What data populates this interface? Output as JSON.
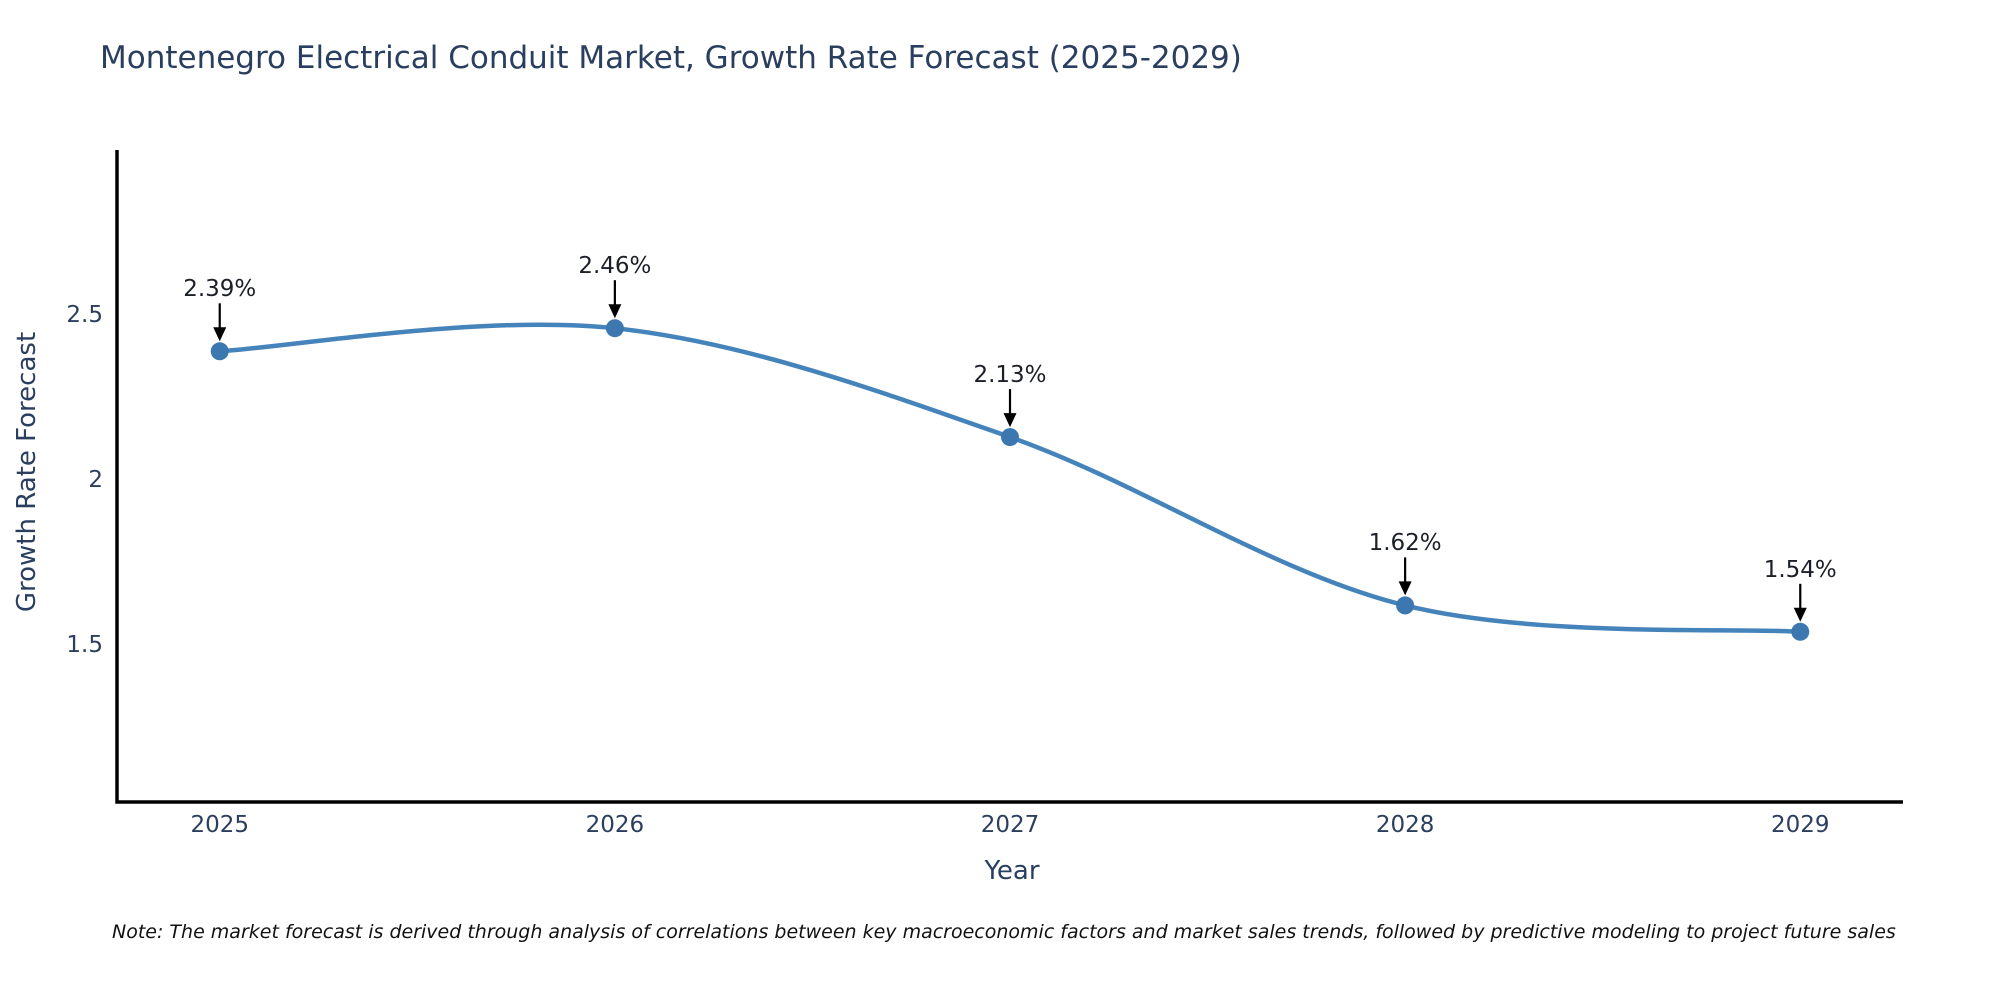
{
  "title": "Montenegro Electrical Conduit Market, Growth Rate Forecast (2025-2029)",
  "note": "Note: The market forecast is derived through analysis of correlations between key macroeconomic factors and market sales trends, followed by predictive modeling to project future sales",
  "chart_data": {
    "type": "line",
    "title": "Montenegro Electrical Conduit Market, Growth Rate Forecast (2025-2029)",
    "xlabel": "Year",
    "ylabel": "Growth Rate Forecast",
    "x": [
      2025,
      2026,
      2027,
      2028,
      2029
    ],
    "values": [
      2.39,
      2.46,
      2.13,
      1.62,
      1.54
    ],
    "point_labels": [
      "2.39%",
      "2.46%",
      "2.13%",
      "1.62%",
      "1.54%"
    ],
    "x_ticks": [
      {
        "value": 2025,
        "label": "2025"
      },
      {
        "value": 2026,
        "label": "2026"
      },
      {
        "value": 2027,
        "label": "2027"
      },
      {
        "value": 2028,
        "label": "2028"
      },
      {
        "value": 2029,
        "label": "2029"
      }
    ],
    "y_ticks": [
      {
        "value": 2.5,
        "label": "2.5"
      },
      {
        "value": 2.0,
        "label": "2"
      },
      {
        "value": 1.5,
        "label": "1.5"
      }
    ],
    "ylim": [
      1.0,
      3.0
    ],
    "xlim": [
      2024.74,
      2029.26
    ],
    "line_shape": "spline",
    "grid": "off",
    "legend": "none",
    "colors": {
      "line": "#4583bb",
      "marker": "#3d77b0",
      "arrow": "#000000",
      "axis": "#000000",
      "title_text": "#2a3f5f",
      "tick_text": "#2c3e5d",
      "annotation_text": "#1c1f27",
      "note_text": "#111111",
      "background": "#ffffff"
    }
  }
}
